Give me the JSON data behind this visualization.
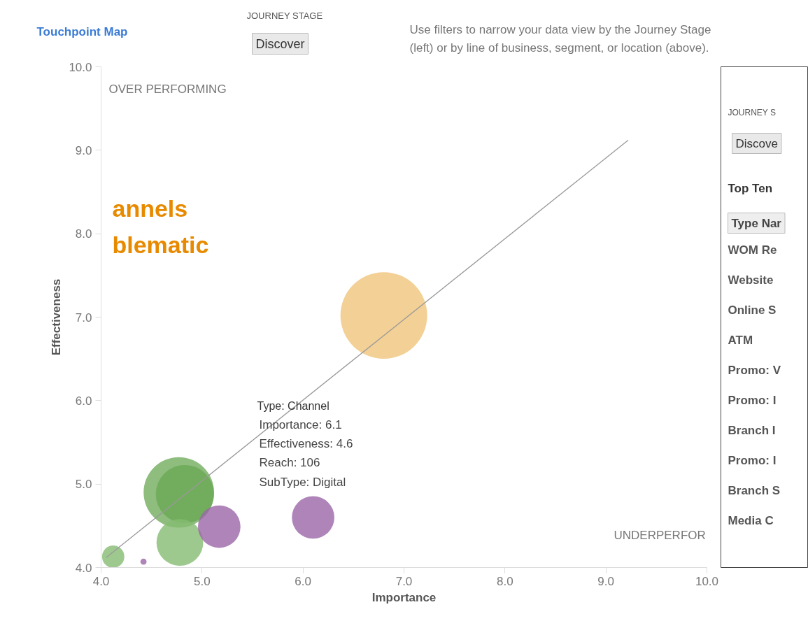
{
  "chart_data": {
    "type": "bubble",
    "xlabel": "Importance",
    "ylabel": "Effectiveness",
    "x": [
      6.8,
      4.77,
      4.83,
      4.78,
      4.12,
      4.42,
      5.17,
      6.1
    ],
    "values": [
      7.02,
      4.9,
      4.88,
      4.3,
      4.13,
      4.07,
      4.49,
      4.6
    ],
    "sizes": [
      1,
      0.66,
      0.45,
      0.29,
      0.066,
      0.005,
      0.24,
      0.24
    ],
    "colors": [
      "#f0c47a",
      "#72ad5e",
      "#6aa955",
      "#86bb72",
      "#86bb72",
      "#9b66a8",
      "#9b66a8",
      "#9b66a8"
    ],
    "marker": "circle",
    "series": [
      {
        "type": "line",
        "marker": "none",
        "color": "#999999",
        "x": [
          4.05,
          9.22
        ],
        "values": [
          4.12,
          9.12
        ]
      }
    ],
    "xlim": [
      4,
      10
    ],
    "ylim": [
      4,
      10
    ],
    "xticks": [
      {
        "value": 4,
        "label": "4.0"
      },
      {
        "value": 5,
        "label": "5.0"
      },
      {
        "value": 6,
        "label": "6.0"
      },
      {
        "value": 7,
        "label": "7.0"
      },
      {
        "value": 8,
        "label": "8.0"
      },
      {
        "value": 9,
        "label": "9.0"
      },
      {
        "value": 10,
        "label": "10.0"
      }
    ],
    "yticks": [
      {
        "value": 4,
        "label": "4.0"
      },
      {
        "value": 5,
        "label": "5.0"
      },
      {
        "value": 6,
        "label": "6.0"
      },
      {
        "value": 7,
        "label": "7.0"
      },
      {
        "value": 8,
        "label": "8.0"
      },
      {
        "value": 9,
        "label": "9.0"
      },
      {
        "value": 10,
        "label": "10.0"
      }
    ],
    "grid": false,
    "legend": false,
    "annotations": [
      "Touchpoint Map",
      "JOURNEY STAGE",
      "Discover",
      "Use filters to narrow your data view by the Journey Stage",
      "(left) or by line of business, segment, or location (above).",
      "OVER PERFORMING",
      "UNDERPERFOR",
      "annels",
      "blematic",
      "Type: Channel",
      "Importance: 6.1",
      "Effectiveness: 4.6",
      "Reach: 106",
      "SubType: Digital",
      "JOURNEY S",
      "Discove",
      "Top Ten",
      "Type Nar",
      "WOM Re",
      "Website",
      "Online S",
      "ATM",
      "Promo: V",
      "Promo: I",
      "Branch I",
      "Promo: I",
      "Branch S",
      "Media C"
    ]
  }
}
